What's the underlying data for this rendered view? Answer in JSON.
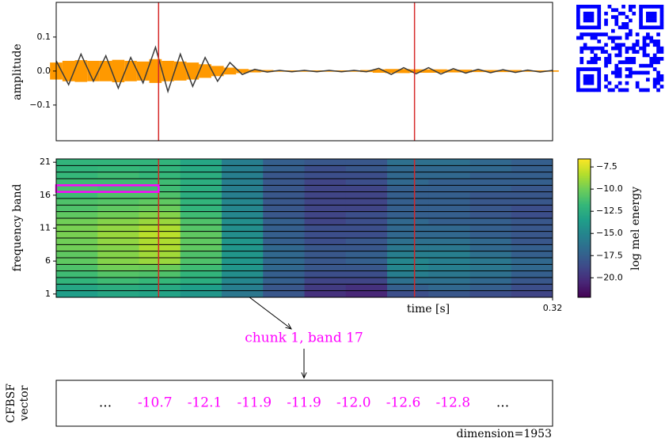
{
  "chart_data": [
    {
      "type": "line",
      "ylabel": "amplitude",
      "x": [
        0,
        0.008,
        0.016,
        0.024,
        0.032,
        0.04,
        0.048,
        0.056,
        0.064,
        0.072,
        0.08,
        0.088,
        0.096,
        0.104,
        0.112,
        0.12,
        0.128,
        0.136,
        0.144,
        0.152,
        0.16,
        0.168,
        0.176,
        0.184,
        0.192,
        0.2,
        0.208,
        0.216,
        0.224,
        0.232,
        0.24,
        0.248,
        0.256,
        0.264,
        0.272,
        0.28,
        0.288,
        0.296,
        0.304,
        0.312,
        0.32
      ],
      "series": [
        {
          "name": "waveform",
          "color": "#3a3a3a",
          "values": [
            0.03,
            -0.04,
            0.05,
            -0.03,
            0.045,
            -0.05,
            0.04,
            -0.035,
            0.07,
            -0.06,
            0.05,
            -0.045,
            0.04,
            -0.03,
            0.025,
            -0.01,
            0.005,
            -0.003,
            0.002,
            -0.002,
            0.002,
            -0.002,
            0.002,
            -0.002,
            0.002,
            -0.002,
            0.008,
            -0.01,
            0.01,
            -0.008,
            0.01,
            -0.009,
            0.007,
            -0.006,
            0.005,
            -0.005,
            0.004,
            -0.004,
            0.003,
            -0.003,
            0.002
          ]
        },
        {
          "name": "envelope",
          "color": "#ff9900",
          "values": [
            0.025,
            0.03,
            0.032,
            0.03,
            0.03,
            0.033,
            0.03,
            0.028,
            0.035,
            0.03,
            0.028,
            0.025,
            0.02,
            0.015,
            0.01,
            0.006,
            0.004,
            0.003,
            0.002,
            0.002,
            0.002,
            0.002,
            0.002,
            0.002,
            0.002,
            0.003,
            0.005,
            0.006,
            0.006,
            0.005,
            0.005,
            0.005,
            0.004,
            0.004,
            0.003,
            0.003,
            0.003,
            0.003,
            0.002,
            0.002,
            0.002
          ]
        }
      ],
      "xlim": [
        0,
        0.32
      ],
      "ylim": [
        -0.205,
        0.202
      ],
      "yticks": [
        {
          "value": -0.1,
          "label": "−0.1"
        },
        {
          "value": 0,
          "label": "0.0"
        },
        0.1
      ],
      "markers": [
        0.066,
        0.231
      ],
      "marker_color": "#d62728"
    },
    {
      "type": "heatmap",
      "ylabel": "frequency band",
      "xlabel": "time [s]",
      "xlim": [
        0,
        0.32
      ],
      "xticks": [
        0.32
      ],
      "ylim": [
        0.5,
        21.5
      ],
      "yticks": [
        1,
        6,
        11,
        16,
        21
      ],
      "markers": [
        0.066,
        0.231
      ],
      "marker_color": "#d62728",
      "highlight": {
        "x": [
          0,
          0.066
        ],
        "band": 17,
        "color": "#ff00ff"
      },
      "z": [
        [
          -13.5,
          -13,
          -13.2,
          -14,
          -16,
          -18,
          -20,
          -20.5,
          -18.5,
          -18,
          -18.5,
          -19
        ],
        [
          -13,
          -12.5,
          -12.8,
          -13.5,
          -15.5,
          -18,
          -19.5,
          -20,
          -17.5,
          -17,
          -17.5,
          -18.5
        ],
        [
          -12,
          -11.5,
          -11.8,
          -12.5,
          -15,
          -17.5,
          -19,
          -19,
          -16.5,
          -16.5,
          -17,
          -18
        ],
        [
          -11.5,
          -10.8,
          -11,
          -12,
          -14.5,
          -17.5,
          -18.5,
          -18.5,
          -15.5,
          -16,
          -16.5,
          -17.5
        ],
        [
          -11,
          -10,
          -10.2,
          -11.5,
          -14,
          -17,
          -18,
          -18,
          -15,
          -15.5,
          -16,
          -17
        ],
        [
          -10.5,
          -9.5,
          -9,
          -11,
          -14,
          -17,
          -18,
          -17.5,
          -15,
          -15.5,
          -16,
          -17
        ],
        [
          -10.5,
          -9.5,
          -8.8,
          -11,
          -14,
          -17,
          -18,
          -17.5,
          -15.5,
          -15.5,
          -16.5,
          -17.5
        ],
        [
          -10,
          -9.5,
          -8.5,
          -10.5,
          -14,
          -17,
          -18,
          -18,
          -16,
          -16,
          -17,
          -17.5
        ],
        [
          -10,
          -9.2,
          -8.5,
          -10.5,
          -14,
          -17.5,
          -18.5,
          -18,
          -16.5,
          -16.5,
          -17,
          -18
        ],
        [
          -9.8,
          -9,
          -8.2,
          -10.5,
          -14.5,
          -17.5,
          -18.5,
          -18.5,
          -17,
          -17,
          -17.5,
          -18
        ],
        [
          -9.8,
          -9.2,
          -8.5,
          -10.8,
          -14.5,
          -17.5,
          -18.5,
          -18.5,
          -17,
          -17,
          -17.5,
          -18
        ],
        [
          -10,
          -9.5,
          -9,
          -11,
          -14.5,
          -17.5,
          -19,
          -18.5,
          -17,
          -17.5,
          -17.5,
          -18
        ],
        [
          -10.5,
          -10,
          -9.5,
          -11.5,
          -15,
          -18,
          -19,
          -18.5,
          -17.5,
          -17.5,
          -18,
          -18.5
        ],
        [
          -11,
          -10.5,
          -10.2,
          -12,
          -15,
          -18,
          -19,
          -19,
          -17.5,
          -17.5,
          -18,
          -18.5
        ],
        [
          -11,
          -10.8,
          -10.5,
          -12,
          -15,
          -18,
          -19,
          -19,
          -17.5,
          -17.5,
          -18,
          -18
        ],
        [
          -11.5,
          -11,
          -11,
          -12.5,
          -15.5,
          -18,
          -19,
          -19,
          -17.5,
          -17.5,
          -18,
          -18
        ],
        [
          -11.2,
          -11.5,
          -11.5,
          -12.5,
          -15.5,
          -18,
          -19,
          -19,
          -17.5,
          -17.5,
          -17.5,
          -18
        ],
        [
          -11.5,
          -11.5,
          -11.5,
          -12.5,
          -15.5,
          -18,
          -19,
          -18.5,
          -17,
          -17.5,
          -17.5,
          -17.5
        ],
        [
          -11.8,
          -11.5,
          -11.8,
          -12.5,
          -15.5,
          -18,
          -18.5,
          -18.5,
          -17,
          -17,
          -17.5,
          -17.5
        ],
        [
          -12,
          -11.8,
          -12,
          -12.8,
          -15.5,
          -17.5,
          -18.5,
          -18,
          -17,
          -17,
          -17,
          -17.5
        ],
        [
          -12,
          -12,
          -12,
          -13,
          -15.5,
          -17.5,
          -18,
          -18,
          -16.5,
          -16.5,
          -17,
          -17.5
        ]
      ],
      "colorbar": {
        "label": "log mel energy",
        "colormap": "viridis",
        "lim": [
          -22.2,
          -6.6
        ],
        "ticks": [
          {
            "value": -7.5,
            "label": "−7.5"
          },
          {
            "value": -10,
            "label": "−10.0"
          },
          {
            "value": -12.5,
            "label": "−12.5"
          },
          {
            "value": -15,
            "label": "−15.0"
          },
          {
            "value": -17.5,
            "label": "−17.5"
          },
          {
            "value": -20,
            "label": "−20.0"
          }
        ]
      }
    }
  ],
  "annotation": {
    "text": "chunk 1, band 17",
    "color": "#ff00ff"
  },
  "vector": {
    "label_lines": [
      "CFBSF",
      "vector"
    ],
    "items": [
      "...",
      "-10.7",
      "-12.1",
      "-11.9",
      "-11.9",
      "-12.0",
      "-12.6",
      "-12.8",
      "..."
    ],
    "dimension": "dimension=1953"
  }
}
